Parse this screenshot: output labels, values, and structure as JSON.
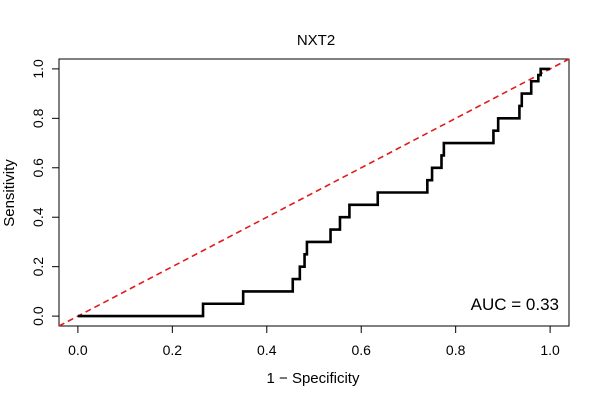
{
  "chart_data": {
    "type": "line",
    "title": "NXT2",
    "xlabel": "1 − Specificity",
    "ylabel": "Sensitivity",
    "xlim": [
      -0.04,
      1.04
    ],
    "ylim": [
      -0.04,
      1.04
    ],
    "x_ticks": [
      "0.0",
      "0.2",
      "0.4",
      "0.6",
      "0.8",
      "1.0"
    ],
    "y_ticks": [
      "0.0",
      "0.2",
      "0.4",
      "0.6",
      "0.8",
      "1.0"
    ],
    "annotation": "AUC = 0.33",
    "reference_line": {
      "from": [
        0,
        0
      ],
      "to": [
        1,
        1
      ],
      "color": "#e31a1c",
      "style": "dashed"
    },
    "series": [
      {
        "color": "#000000",
        "x": [
          0.0,
          0.265,
          0.265,
          0.35,
          0.35,
          0.455,
          0.455,
          0.47,
          0.47,
          0.48,
          0.48,
          0.485,
          0.485,
          0.535,
          0.535,
          0.555,
          0.555,
          0.575,
          0.575,
          0.635,
          0.635,
          0.74,
          0.74,
          0.75,
          0.75,
          0.77,
          0.77,
          0.775,
          0.775,
          0.88,
          0.88,
          0.89,
          0.89,
          0.935,
          0.935,
          0.94,
          0.94,
          0.96,
          0.96,
          0.975,
          0.975,
          0.98,
          0.98,
          1.0
        ],
        "y": [
          0.0,
          0.0,
          0.05,
          0.05,
          0.1,
          0.1,
          0.15,
          0.15,
          0.2,
          0.2,
          0.25,
          0.25,
          0.3,
          0.3,
          0.35,
          0.35,
          0.4,
          0.4,
          0.45,
          0.45,
          0.5,
          0.5,
          0.55,
          0.55,
          0.6,
          0.6,
          0.65,
          0.65,
          0.7,
          0.7,
          0.75,
          0.75,
          0.8,
          0.8,
          0.85,
          0.85,
          0.9,
          0.9,
          0.95,
          0.95,
          0.975,
          0.975,
          1.0,
          1.0
        ]
      }
    ]
  }
}
